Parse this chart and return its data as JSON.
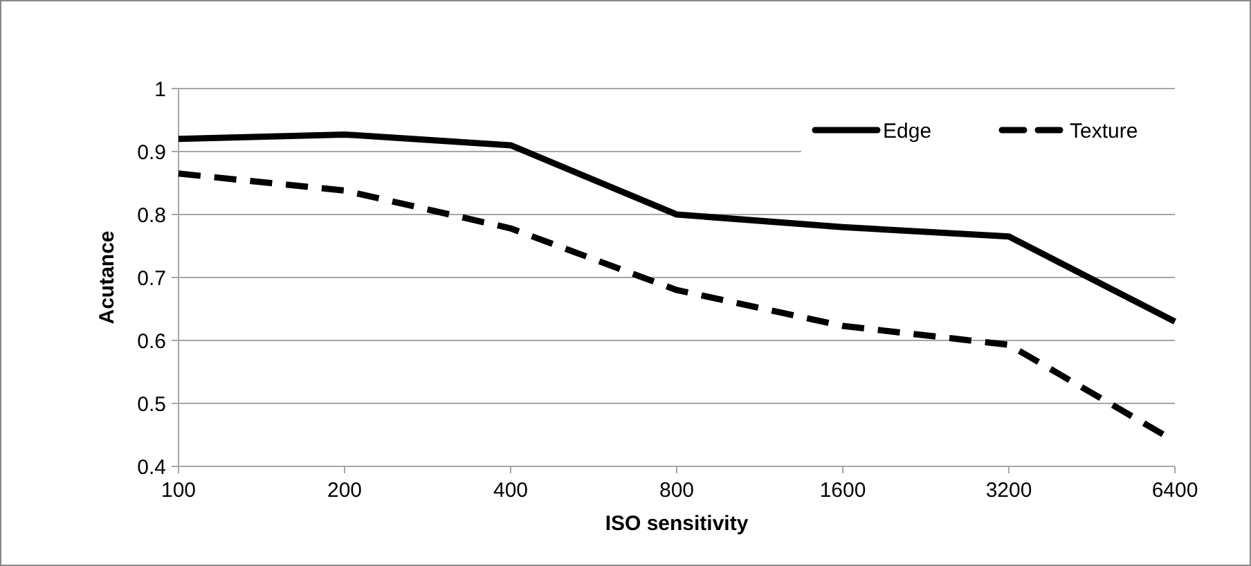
{
  "chart_data": {
    "type": "line",
    "xlabel": "ISO sensitivity",
    "ylabel": "Acutance",
    "categories": [
      "100",
      "200",
      "400",
      "800",
      "1600",
      "3200",
      "6400"
    ],
    "series": [
      {
        "name": "Edge",
        "color": "#000000",
        "line_style": "solid",
        "values": [
          0.92,
          0.927,
          0.91,
          0.8,
          0.78,
          0.765,
          0.63
        ]
      },
      {
        "name": "Texture",
        "color": "#000000",
        "line_style": "dashed",
        "values": [
          0.865,
          0.838,
          0.778,
          0.68,
          0.623,
          0.593,
          0.44
        ]
      }
    ],
    "ylim": [
      0.4,
      1
    ],
    "yticks": [
      0.4,
      0.5,
      0.6,
      0.7,
      0.8,
      0.9,
      1
    ],
    "grid": "y",
    "legend": "top right",
    "marker": "none"
  }
}
